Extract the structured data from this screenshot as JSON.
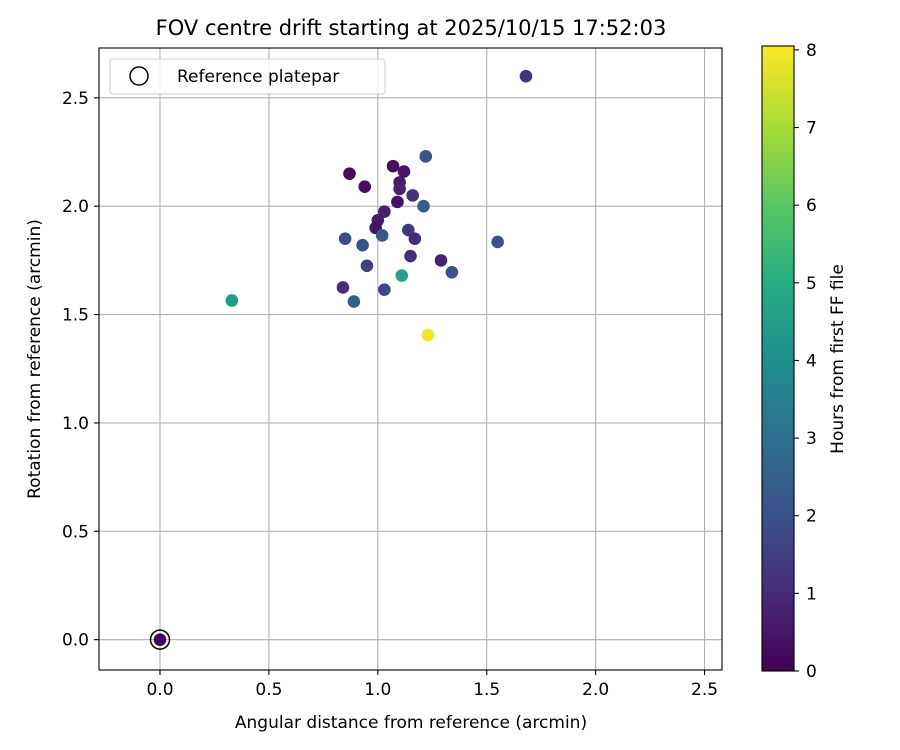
{
  "chart_data": {
    "type": "scatter",
    "title": "FOV centre drift starting at 2025/10/15 17:52:03",
    "xlabel": "Angular distance from reference (arcmin)",
    "ylabel": "Rotation from reference (arcmin)",
    "xlim": [
      -0.28,
      2.58
    ],
    "ylim": [
      -0.14,
      2.73
    ],
    "xticks": [
      0.0,
      0.5,
      1.0,
      1.5,
      2.0,
      2.5
    ],
    "xtick_labels": [
      "0.0",
      "0.5",
      "1.0",
      "1.5",
      "2.0",
      "2.5"
    ],
    "yticks": [
      0.0,
      0.5,
      1.0,
      1.5,
      2.0,
      2.5
    ],
    "ytick_labels": [
      "0.0",
      "0.5",
      "1.0",
      "1.5",
      "2.0",
      "2.5"
    ],
    "grid": true,
    "legend": {
      "placement": "upper-left",
      "entries": [
        "Reference platepar"
      ]
    },
    "reference_point": {
      "x": 0.0,
      "y": 0.0,
      "label": "Reference platepar"
    },
    "colorbar": {
      "label": "Hours from first FF file",
      "colormap": "viridis",
      "range": [
        0,
        8.05
      ],
      "ticks": [
        0,
        1,
        2,
        3,
        4,
        5,
        6,
        7,
        8
      ],
      "tick_labels": [
        "0",
        "1",
        "2",
        "3",
        "4",
        "5",
        "6",
        "7",
        "8"
      ]
    },
    "points": [
      {
        "x": 0.0,
        "y": 0.0,
        "hours": 0.0
      },
      {
        "x": 1.68,
        "y": 2.6,
        "hours": 1.2
      },
      {
        "x": 1.22,
        "y": 2.23,
        "hours": 2.0
      },
      {
        "x": 1.07,
        "y": 2.185,
        "hours": 0.3
      },
      {
        "x": 1.12,
        "y": 2.16,
        "hours": 0.5
      },
      {
        "x": 0.87,
        "y": 2.15,
        "hours": 0.2
      },
      {
        "x": 1.1,
        "y": 2.11,
        "hours": 0.6
      },
      {
        "x": 0.94,
        "y": 2.09,
        "hours": 0.3
      },
      {
        "x": 1.1,
        "y": 2.08,
        "hours": 0.8
      },
      {
        "x": 1.16,
        "y": 2.05,
        "hours": 1.2
      },
      {
        "x": 1.09,
        "y": 2.02,
        "hours": 0.4
      },
      {
        "x": 1.21,
        "y": 2.0,
        "hours": 2.4
      },
      {
        "x": 1.03,
        "y": 1.975,
        "hours": 0.7
      },
      {
        "x": 1.0,
        "y": 1.935,
        "hours": 0.6
      },
      {
        "x": 0.99,
        "y": 1.9,
        "hours": 0.4
      },
      {
        "x": 1.14,
        "y": 1.89,
        "hours": 1.4
      },
      {
        "x": 1.02,
        "y": 1.865,
        "hours": 2.2
      },
      {
        "x": 0.85,
        "y": 1.85,
        "hours": 1.9
      },
      {
        "x": 1.17,
        "y": 1.85,
        "hours": 1.0
      },
      {
        "x": 1.55,
        "y": 1.835,
        "hours": 2.1
      },
      {
        "x": 0.93,
        "y": 1.82,
        "hours": 2.0
      },
      {
        "x": 1.15,
        "y": 1.77,
        "hours": 1.1
      },
      {
        "x": 1.29,
        "y": 1.75,
        "hours": 0.8
      },
      {
        "x": 0.95,
        "y": 1.725,
        "hours": 1.6
      },
      {
        "x": 1.34,
        "y": 1.695,
        "hours": 2.1
      },
      {
        "x": 1.11,
        "y": 1.68,
        "hours": 4.6
      },
      {
        "x": 0.84,
        "y": 1.625,
        "hours": 1.0
      },
      {
        "x": 1.03,
        "y": 1.615,
        "hours": 1.7
      },
      {
        "x": 0.33,
        "y": 1.565,
        "hours": 4.4
      },
      {
        "x": 0.89,
        "y": 1.56,
        "hours": 2.5
      },
      {
        "x": 1.23,
        "y": 1.405,
        "hours": 7.9
      }
    ]
  }
}
